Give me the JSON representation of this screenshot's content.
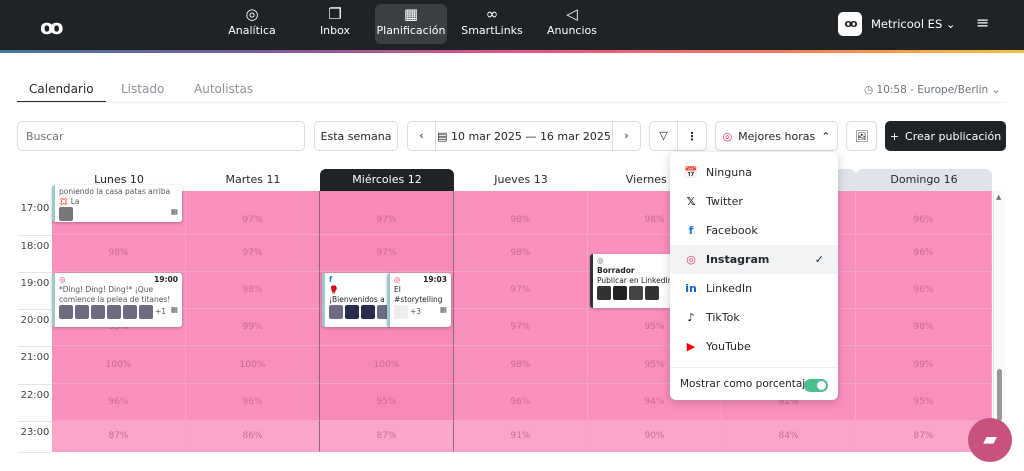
{
  "nav": {
    "items": [
      {
        "label": "Analítica",
        "icon": "analytics-icon",
        "glyph": "◎"
      },
      {
        "label": "Inbox",
        "icon": "inbox-icon",
        "glyph": "❐"
      },
      {
        "label": "Planificación",
        "icon": "calendar-icon",
        "glyph": "▦",
        "active": true
      },
      {
        "label": "SmartLinks",
        "icon": "link-icon",
        "glyph": "∞"
      },
      {
        "label": "Anuncios",
        "icon": "megaphone-icon",
        "glyph": "◁"
      }
    ],
    "account": "Metricool ES"
  },
  "tabs": [
    "Calendario",
    "Listado",
    "Autolistas"
  ],
  "timezone": "10:58 - Europe/Berlin",
  "toolbar": {
    "search_placeholder": "Buscar",
    "this_week": "Esta semana",
    "date_from": "10 mar 2025",
    "date_to": "16 mar 2025",
    "best_hours": "Mejores horas",
    "create": "Crear publicación"
  },
  "days": [
    "Lunes 10",
    "Martes 11",
    "Miércoles 12",
    "Jueves 13",
    "Viernes 14",
    "Sábado 15",
    "Domingo 16"
  ],
  "hours": [
    "17:00",
    "18:00",
    "19:00",
    "20:00",
    "21:00",
    "22:00",
    "23:00"
  ],
  "percentages": [
    [
      "",
      "98%",
      "",
      "99%",
      "100%",
      "96%",
      "87%"
    ],
    [
      "97%",
      "97%",
      "98%",
      "99%",
      "100%",
      "96%",
      "86%"
    ],
    [
      "97%",
      "97%",
      "",
      "",
      "100%",
      "95%",
      "87%"
    ],
    [
      "98%",
      "98%",
      "97%",
      "97%",
      "98%",
      "96%",
      "91%"
    ],
    [
      "98%",
      "",
      "",
      "95%",
      "95%",
      "94%",
      "90%"
    ],
    [
      "",
      "",
      "",
      "",
      "",
      "91%",
      "84%"
    ],
    [
      "96%",
      "96%",
      "96%",
      "98%",
      "99%",
      "95%",
      "87%"
    ]
  ],
  "posts": {
    "p1": {
      "text": "poniendo la casa patas arriba 💢 La"
    },
    "p2": {
      "time": "19:00",
      "text": "*Ding! Ding! Ding!* ¡Que comience la pelea de titanes! 🥊 ¡Dónde hay",
      "more": "+1"
    },
    "p3": {
      "text": "🥊 ¡Bienvenidos a sociales! 🥊 Cuatr"
    },
    "p4": {
      "time": "19:03",
      "text": "El #storytelling no es magia.",
      "more": "+3"
    },
    "p5": {
      "status": "Borrador",
      "text": "Publicar en LinkedIn si"
    }
  },
  "dropdown": {
    "items": [
      {
        "label": "Ninguna",
        "icon": "calendar-clock-icon",
        "glyph": "📅"
      },
      {
        "label": "Twitter",
        "icon": "x-icon",
        "glyph": "𝕏"
      },
      {
        "label": "Facebook",
        "icon": "facebook-icon",
        "glyph": "f",
        "color": "#1877f2"
      },
      {
        "label": "Instagram",
        "icon": "instagram-icon",
        "glyph": "◎",
        "color": "#e1306c",
        "selected": true
      },
      {
        "label": "LinkedIn",
        "icon": "linkedin-icon",
        "glyph": "in",
        "color": "#0a66c2"
      },
      {
        "label": "TikTok",
        "icon": "tiktok-icon",
        "glyph": "♪"
      },
      {
        "label": "YouTube",
        "icon": "youtube-icon",
        "glyph": "▶",
        "color": "#ff0000"
      }
    ],
    "percent_label": "Mostrar como porcentaje",
    "percent_on": true
  },
  "colors": {
    "heat": "#f98fbd",
    "heat_light": "#fba5ca",
    "accent": "#1f2326",
    "toggle": "#4cbf90"
  }
}
